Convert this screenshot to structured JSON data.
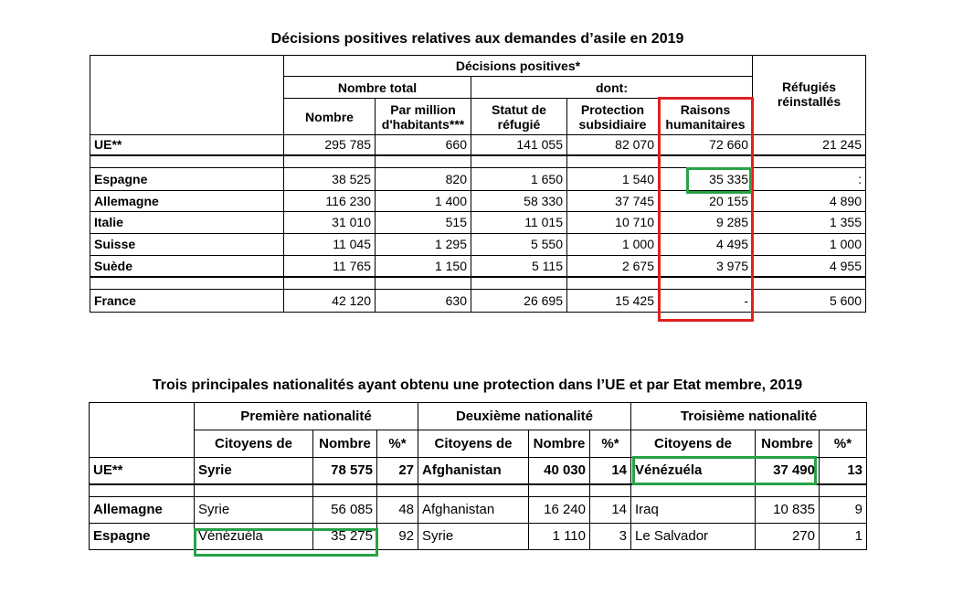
{
  "table1": {
    "title": "Décisions positives relatives aux demandes d’asile en 2019",
    "header": {
      "decisions": "Décisions positives*",
      "total": "Nombre total",
      "dont": "dont:",
      "refugies": "Réfugiés réinstallés",
      "columns": [
        "Nombre",
        "Par million d'habitants***",
        "Statut de réfugié",
        "Protection subsidiaire",
        "Raisons humanitaires"
      ]
    },
    "rows": [
      [
        "UE**",
        "295 785",
        "660",
        "141 055",
        "82 070",
        "72 660",
        "21 245"
      ],
      [
        "Espagne",
        "38 525",
        "820",
        "1 650",
        "1 540",
        "35 335",
        ":"
      ],
      [
        "Allemagne",
        "116 230",
        "1 400",
        "58 330",
        "37 745",
        "20 155",
        "4 890"
      ],
      [
        "Italie",
        "31 010",
        "515",
        "11 015",
        "10 710",
        "9 285",
        "1 355"
      ],
      [
        "Suisse",
        "11 045",
        "1 295",
        "5 550",
        "1 000",
        "4 495",
        "1 000"
      ],
      [
        "Suède",
        "11 765",
        "1 150",
        "5 115",
        "2 675",
        "3 975",
        "4 955"
      ],
      [
        "France",
        "42 120",
        "630",
        "26 695",
        "15 425",
        "-",
        "5 600"
      ]
    ]
  },
  "table2": {
    "title": "Trois principales nationalités ayant obtenu une protection dans l’UE et par Etat membre, 2019",
    "groups": [
      "Première nationalité",
      "Deuxième nationalité",
      "Troisième nationalité"
    ],
    "columns": [
      "Citoyens de",
      "Nombre",
      "%*",
      "Citoyens de",
      "Nombre",
      "%*",
      "Citoyens de",
      "Nombre",
      "%*"
    ],
    "rows": [
      [
        "UE**",
        "Syrie",
        "78 575",
        "27",
        "Afghanistan",
        "40 030",
        "14",
        "Vénézuéla",
        "37 490",
        "13"
      ],
      [
        "Allemagne",
        "Syrie",
        "56 085",
        "48",
        "Afghanistan",
        "16 240",
        "14",
        "Iraq",
        "10 835",
        "9"
      ],
      [
        "Espagne",
        "Vénézuéla",
        "35 275",
        "92",
        "Syrie",
        "1 110",
        "3",
        "Le Salvador",
        "270",
        "1"
      ]
    ]
  }
}
